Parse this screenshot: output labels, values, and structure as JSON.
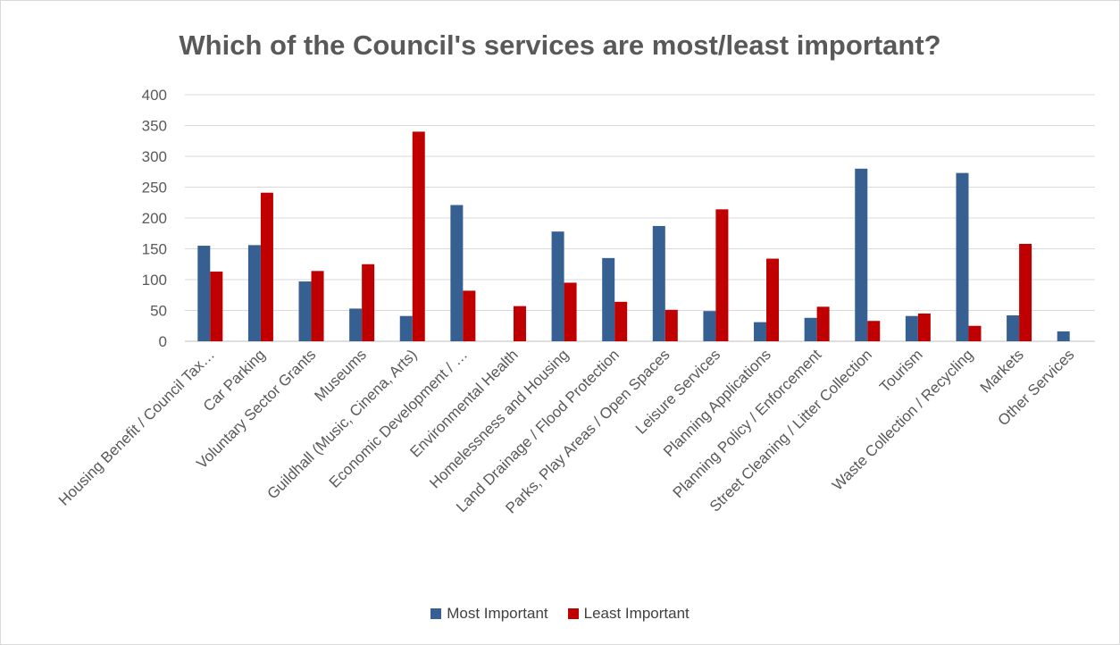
{
  "chart_data": {
    "type": "bar",
    "title": "Which of the Council's services are most/least important?",
    "xlabel": "",
    "ylabel": "",
    "ylim": [
      0,
      400
    ],
    "yticks": [
      "0",
      "50",
      "100",
      "150",
      "200",
      "250",
      "300",
      "350",
      "400"
    ],
    "grid": true,
    "legend_position": "bottom",
    "categories": [
      "Housing Benefit / Council Tax…",
      "Car Parking",
      "Voluntary Sector Grants",
      "Museums",
      "Guildhall (Music, Cinena, Arts)",
      "Economic Development / …",
      "Environmental Health",
      "Homelessness and Housing",
      "Land Drainage / Flood Protection",
      "Parks, Play Areas / Open Spaces",
      "Leisure Services",
      "Planning Applications",
      "Planning Policy / Enforcement",
      "Street Cleaning / Litter Collection",
      "Tourism",
      "Waste Collection / Recycling",
      "Markets",
      "Other Services"
    ],
    "series": [
      {
        "name": "Most Important",
        "color": "#376092",
        "values": [
          155,
          156,
          97,
          53,
          41,
          221,
          0,
          178,
          135,
          187,
          49,
          31,
          38,
          280,
          41,
          273,
          42,
          16
        ]
      },
      {
        "name": "Least Important",
        "color": "#c00000",
        "values": [
          113,
          241,
          114,
          125,
          340,
          82,
          57,
          95,
          64,
          51,
          214,
          134,
          56,
          33,
          45,
          25,
          158,
          0
        ]
      }
    ]
  }
}
